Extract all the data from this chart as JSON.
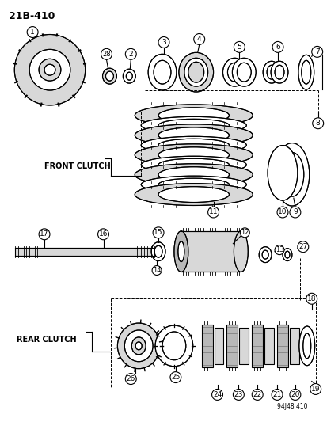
{
  "title": "21B-410",
  "front_clutch_label": "FRONT CLUTCH",
  "rear_clutch_label": "REAR CLUTCH",
  "watermark": "94J48 410",
  "bg_color": "#ffffff",
  "line_color": "#000000",
  "gray_light": "#d8d8d8",
  "gray_mid": "#b8b8b8",
  "gray_dark": "#909090"
}
